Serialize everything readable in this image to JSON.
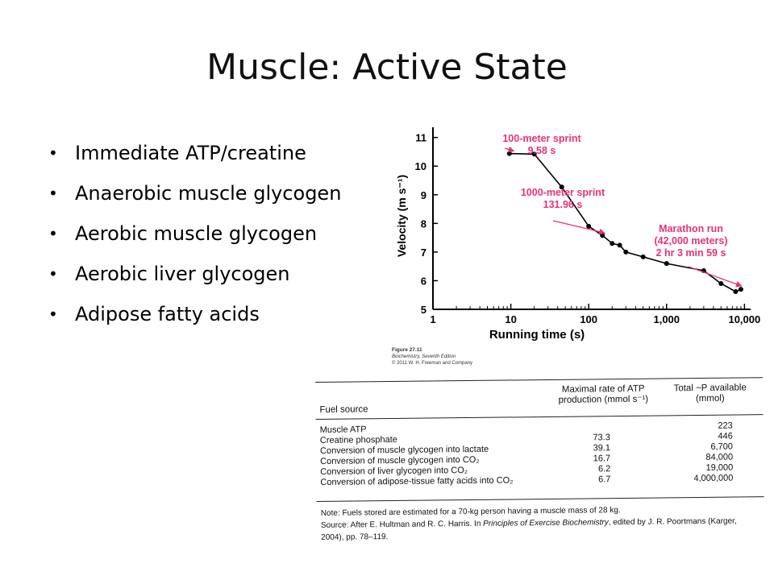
{
  "slide": {
    "title": "Muscle: Active State",
    "bullets": [
      "Immediate ATP/creatine",
      "Anaerobic muscle glycogen",
      "Aerobic muscle glycogen",
      "Aerobic liver glycogen",
      "Adipose fatty acids"
    ]
  },
  "chart_data": {
    "type": "line",
    "xlabel": "Running time (s)",
    "ylabel": "Velocity (m s⁻¹)",
    "x_scale": "log",
    "xlim": [
      1,
      12000
    ],
    "ylim": [
      5,
      11.3
    ],
    "x_ticks": [
      "1",
      "10",
      "100",
      "1,000",
      "10,000"
    ],
    "y_ticks": [
      "5",
      "6",
      "7",
      "8",
      "9",
      "10",
      "11"
    ],
    "grid": false,
    "series": [
      {
        "x": [
          9.58,
          20,
          45,
          100,
          150,
          200,
          250,
          300,
          500,
          1000,
          3000,
          5000,
          7700,
          9000
        ],
        "y": [
          10.44,
          10.42,
          9.27,
          7.9,
          7.58,
          7.3,
          7.24,
          7.0,
          6.83,
          6.6,
          6.35,
          5.9,
          5.62,
          5.7
        ]
      }
    ],
    "annotations": [
      {
        "lines": [
          "100-meter sprint",
          "9.58 s"
        ]
      },
      {
        "lines": [
          "1000-meter sprint",
          "131.96 s"
        ]
      },
      {
        "lines": [
          "Marathon run",
          "(42,000 meters)",
          "2 hr 3 min 59 s"
        ]
      }
    ],
    "annotation_color": "#e8317a",
    "caption": [
      "Figure 27.11",
      "Biochemistry, Seventh Edition",
      "© 2011 W. H. Freeman and Company"
    ]
  },
  "table": {
    "headers": {
      "source": "Fuel source",
      "rate": [
        "Maximal rate of ATP",
        "production (mmol s⁻¹)"
      ],
      "total": [
        "Total ~P available",
        "(mmol)"
      ]
    },
    "rows": [
      {
        "source": "Muscle ATP",
        "rate": "",
        "total": "223"
      },
      {
        "source": "Creatine phosphate",
        "rate": "73.3",
        "total": "446"
      },
      {
        "source": "Conversion of muscle glycogen into lactate",
        "rate": "39.1",
        "total": "6,700"
      },
      {
        "source": "Conversion of muscle glycogen into CO₂",
        "rate": "16.7",
        "total": "84,000"
      },
      {
        "source": "Conversion of liver glycogen into CO₂",
        "rate": "6.2",
        "total": "19,000"
      },
      {
        "source": "Conversion of adipose-tissue fatty acids into CO₂",
        "rate": "6.7",
        "total": "4,000,000"
      }
    ],
    "note": "Note: Fuels stored are estimated for a 70-kg person having a muscle mass of 28 kg.",
    "source_prefix": "Source: After E. Hultman and R. C. Harris. In ",
    "source_book": "Principles of Exercise Biochemistry",
    "source_suffix": ", edited by J. R. Poortmans (Karger, 2004), pp. 78–119."
  }
}
